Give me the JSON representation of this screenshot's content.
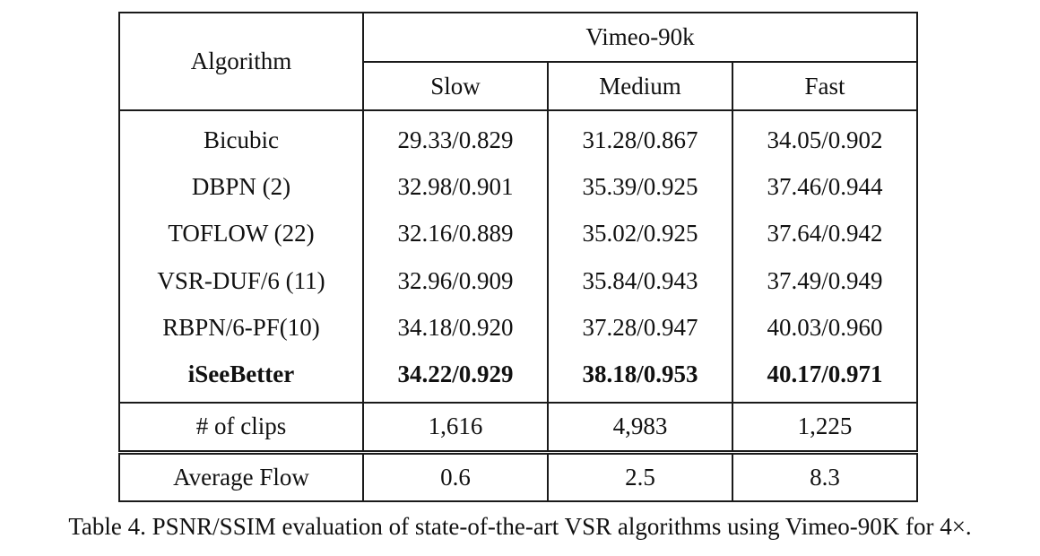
{
  "table": {
    "algorithm_header": "Algorithm",
    "dataset_header": "Vimeo-90k",
    "columns": [
      "Slow",
      "Medium",
      "Fast"
    ],
    "rows": [
      {
        "name": "Bicubic",
        "values": [
          "29.33/0.829",
          "31.28/0.867",
          "34.05/0.902"
        ],
        "bold": false
      },
      {
        "name": "DBPN (2)",
        "values": [
          "32.98/0.901",
          "35.39/0.925",
          "37.46/0.944"
        ],
        "bold": false
      },
      {
        "name": "TOFLOW (22)",
        "values": [
          "32.16/0.889",
          "35.02/0.925",
          "37.64/0.942"
        ],
        "bold": false
      },
      {
        "name": "VSR-DUF/6 (11)",
        "values": [
          "32.96/0.909",
          "35.84/0.943",
          "37.49/0.949"
        ],
        "bold": false
      },
      {
        "name": "RBPN/6-PF(10)",
        "values": [
          "34.18/0.920",
          "37.28/0.947",
          "40.03/0.960"
        ],
        "bold": false
      },
      {
        "name": "iSeeBetter",
        "values": [
          "34.22/0.929",
          "38.18/0.953",
          "40.17/0.971"
        ],
        "bold": true
      }
    ],
    "clips": {
      "label": "# of clips",
      "values": [
        "1,616",
        "4,983",
        "1,225"
      ]
    },
    "average_flow": {
      "label": "Average Flow",
      "values": [
        "0.6",
        "2.5",
        "8.3"
      ]
    }
  },
  "caption": "Table 4. PSNR/SSIM evaluation of state-of-the-art VSR algorithms using Vimeo-90K for 4×."
}
